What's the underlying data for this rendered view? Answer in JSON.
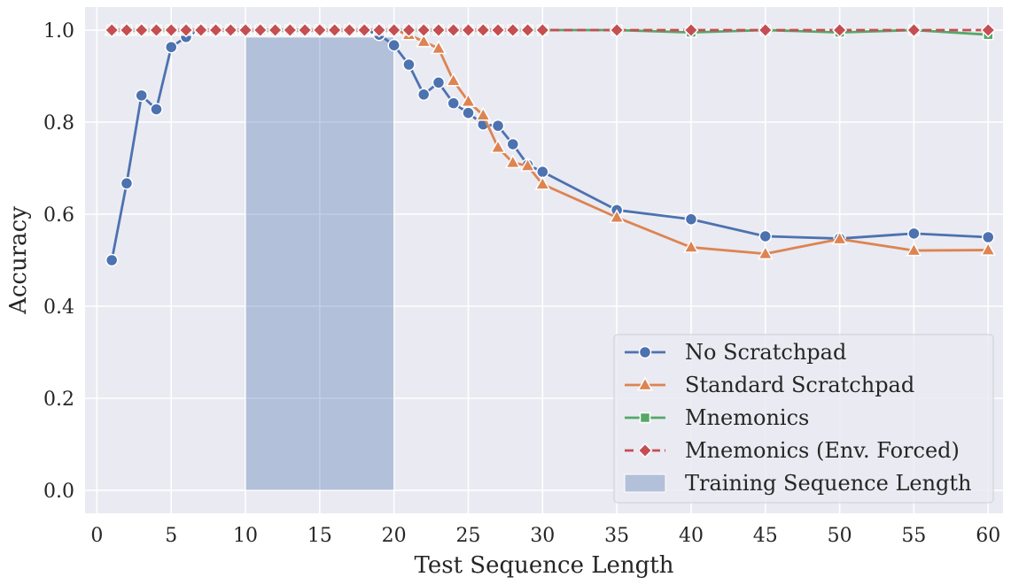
{
  "chart_data": {
    "type": "line",
    "title": "",
    "xlabel": "Test Sequence Length",
    "ylabel": "Accuracy",
    "xlim": [
      -0.8,
      61
    ],
    "ylim": [
      -0.05,
      1.05
    ],
    "xticks": [
      0,
      5,
      10,
      15,
      20,
      25,
      30,
      35,
      40,
      45,
      50,
      55,
      60
    ],
    "xtick_labels": [
      "0",
      "5",
      "10",
      "15",
      "20",
      "25",
      "30",
      "35",
      "40",
      "45",
      "50",
      "55",
      "60"
    ],
    "yticks": [
      0.0,
      0.2,
      0.4,
      0.6,
      0.8,
      1.0
    ],
    "ytick_labels": [
      "0.0",
      "0.2",
      "0.4",
      "0.6",
      "0.8",
      "1.0"
    ],
    "grid": true,
    "legend_position": "bottom-right",
    "shaded_region": {
      "label": "Training Sequence Length",
      "x_start": 10,
      "x_end": 20,
      "y_start": 0.0,
      "y_end": 0.985,
      "color": "#4c72b0"
    },
    "series": [
      {
        "name": "No Scratchpad",
        "color": "#4c72b0",
        "marker": "circle",
        "linestyle": "solid",
        "x": [
          1,
          2,
          3,
          4,
          5,
          6,
          7,
          8,
          9,
          10,
          11,
          12,
          13,
          14,
          15,
          16,
          17,
          18,
          19,
          20,
          21,
          22,
          23,
          24,
          25,
          26,
          27,
          28,
          29,
          30,
          35,
          40,
          45,
          50,
          55,
          60
        ],
        "y": [
          0.5,
          0.667,
          0.858,
          0.828,
          0.963,
          0.985,
          1,
          1,
          1,
          1,
          1,
          1,
          1,
          1,
          1,
          1,
          1,
          1,
          0.99,
          0.967,
          0.925,
          0.86,
          0.886,
          0.841,
          0.82,
          0.795,
          0.792,
          0.752,
          0.707,
          0.692,
          0.609,
          0.589,
          0.552,
          0.547,
          0.558,
          0.55
        ]
      },
      {
        "name": "Standard Scratchpad",
        "color": "#dd8452",
        "marker": "triangle",
        "linestyle": "solid",
        "x": [
          1,
          2,
          3,
          4,
          5,
          6,
          7,
          8,
          9,
          10,
          11,
          12,
          13,
          14,
          15,
          16,
          17,
          18,
          19,
          20,
          21,
          22,
          23,
          24,
          25,
          26,
          27,
          28,
          29,
          30,
          35,
          40,
          45,
          50,
          55,
          60
        ],
        "y": [
          1,
          1,
          1,
          1,
          1,
          1,
          1,
          1,
          1,
          1,
          1,
          1,
          1,
          1,
          1,
          1,
          1,
          1,
          1,
          1,
          0.99,
          0.975,
          0.96,
          0.89,
          0.845,
          0.815,
          0.745,
          0.712,
          0.705,
          0.665,
          0.593,
          0.528,
          0.514,
          0.546,
          0.521,
          0.522
        ]
      },
      {
        "name": "Mnemonics",
        "color": "#55a868",
        "marker": "square",
        "linestyle": "solid",
        "x": [
          1,
          2,
          3,
          4,
          5,
          6,
          7,
          8,
          9,
          10,
          11,
          12,
          13,
          14,
          15,
          16,
          17,
          18,
          19,
          20,
          21,
          22,
          23,
          24,
          25,
          26,
          27,
          28,
          29,
          30,
          35,
          40,
          45,
          50,
          55,
          60
        ],
        "y": [
          1,
          1,
          1,
          1,
          1,
          1,
          1,
          1,
          1,
          1,
          1,
          1,
          1,
          1,
          1,
          1,
          1,
          1,
          1,
          1,
          1,
          1,
          1,
          1,
          1,
          1,
          1,
          1,
          1,
          1,
          1,
          0.995,
          1,
          0.995,
          1,
          0.99
        ]
      },
      {
        "name": "Mnemonics (Env. Forced)",
        "color": "#c44e52",
        "marker": "diamond",
        "linestyle": "dashed",
        "x": [
          1,
          2,
          3,
          4,
          5,
          6,
          7,
          8,
          9,
          10,
          11,
          12,
          13,
          14,
          15,
          16,
          17,
          18,
          19,
          20,
          21,
          22,
          23,
          24,
          25,
          26,
          27,
          28,
          29,
          30,
          35,
          40,
          45,
          50,
          55,
          60
        ],
        "y": [
          1,
          1,
          1,
          1,
          1,
          1,
          1,
          1,
          1,
          1,
          1,
          1,
          1,
          1,
          1,
          1,
          1,
          1,
          1,
          1,
          1,
          1,
          1,
          1,
          1,
          1,
          1,
          1,
          1,
          1,
          1,
          1,
          1,
          1,
          1,
          1
        ]
      }
    ]
  }
}
